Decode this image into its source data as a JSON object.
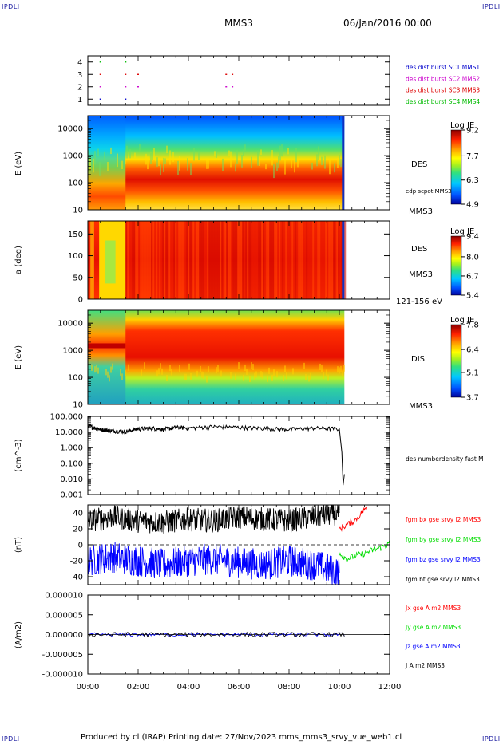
{
  "header": {
    "corner_label": "IPDLI",
    "spacecraft": "MMS3",
    "datetime": "06/Jan/2016 00:00"
  },
  "footer": {
    "text": "Produced by cl (IRAP)   Printing date: 27/Nov/2023   mms_mms3_srvy_vue_web1.cl"
  },
  "colors": {
    "mms1": "#0000cc",
    "mms2": "#cc00cc",
    "mms3": "#dd0000",
    "mms4": "#00bb00",
    "bx": "#ff0000",
    "by": "#00dd00",
    "bz": "#0000ff",
    "bt": "#000000"
  },
  "chart_data": [
    {
      "type": "scatter",
      "panel": "burst_availability",
      "yticks": [
        "1",
        "2",
        "3",
        "4"
      ],
      "legend": [
        "des dist burst SC1 MMS1",
        "des dist burst SC2 MMS2",
        "des dist burst SC3 MMS3",
        "des dist burst SC4 MMS4"
      ],
      "series": [
        {
          "name": "des dist burst SC1 MMS1",
          "y": 1,
          "x": [
            0.5,
            1.5
          ]
        },
        {
          "name": "des dist burst SC2 MMS2",
          "y": 2,
          "x": [
            0.5,
            1.5,
            2.0,
            5.5,
            5.75
          ]
        },
        {
          "name": "des dist burst SC3 MMS3",
          "y": 3,
          "x": [
            0.5,
            1.5,
            2.0,
            5.5,
            5.75
          ]
        },
        {
          "name": "des dist burst SC4 MMS4",
          "y": 4,
          "x": [
            0.5,
            1.5
          ]
        }
      ]
    },
    {
      "type": "heatmap",
      "panel": "des_energy",
      "ylabel": "E (eV)",
      "yscale": "log",
      "ylim": [
        10,
        30000
      ],
      "yticks": [
        "10",
        "100",
        "1000",
        "10000"
      ],
      "label": "DES",
      "label2": "edp scpot MMS3",
      "label3": "MMS3",
      "colorbar": {
        "title": "Log JE",
        "ticks": [
          "9.2",
          "7.7",
          "6.3",
          "4.9"
        ],
        "range": [
          4.9,
          9.2
        ]
      },
      "data_end_hour": 10.2,
      "peak_energy_eV": [
        [
          "00:00",
          60
        ],
        [
          "01:00",
          120
        ],
        [
          "02:00",
          150
        ],
        [
          "04:00",
          140
        ],
        [
          "06:00",
          150
        ],
        [
          "08:00",
          150
        ],
        [
          "10:00",
          120
        ]
      ]
    },
    {
      "type": "heatmap",
      "panel": "des_pitch_angle",
      "ylabel": "a (deg)",
      "ylim": [
        0,
        180
      ],
      "yticks": [
        "0",
        "50",
        "100",
        "150"
      ],
      "label": "DES",
      "label2": "MMS3",
      "energy_range": "121-156 eV",
      "colorbar": {
        "title": "Log JE",
        "ticks": [
          "9.4",
          "8.0",
          "6.7",
          "5.4"
        ],
        "range": [
          5.4,
          9.4
        ]
      },
      "data_end_hour": 10.2
    },
    {
      "type": "heatmap",
      "panel": "dis_energy",
      "ylabel": "E (eV)",
      "yscale": "log",
      "ylim": [
        10,
        30000
      ],
      "yticks": [
        "10",
        "100",
        "1000",
        "10000"
      ],
      "label": "DIS",
      "label2": "MMS3",
      "colorbar": {
        "title": "Log JE",
        "ticks": [
          "7.8",
          "6.4",
          "5.1",
          "3.7"
        ],
        "range": [
          3.7,
          7.8
        ]
      },
      "data_end_hour": 10.2
    },
    {
      "type": "line",
      "panel": "density",
      "ylabel": "(cm^-3)",
      "yscale": "log",
      "ylim": [
        0.001,
        100
      ],
      "yticks": [
        "0.001",
        "0.010",
        "0.100",
        "1.000",
        "10.000",
        "100.000"
      ],
      "legend": [
        "des numberdensity fast M"
      ],
      "series": [
        {
          "name": "des numberdensity fast M",
          "x": [
            0,
            0.3,
            0.6,
            1.0,
            1.5,
            2.0,
            2.5,
            3.0,
            3.5,
            4.0,
            5.0,
            6.0,
            7.0,
            8.0,
            9.0,
            10.0,
            10.1,
            10.15,
            10.2
          ],
          "y": [
            25,
            18,
            14,
            12,
            11,
            16,
            18,
            15,
            20,
            18,
            22,
            20,
            17,
            15,
            18,
            16,
            0.5,
            0.004,
            0.02
          ]
        }
      ]
    },
    {
      "type": "line",
      "panel": "magnetic_field",
      "ylabel": "(nT)",
      "ylim": [
        -50,
        50
      ],
      "yticks": [
        "-40",
        "-20",
        "0",
        "20",
        "40"
      ],
      "legend": [
        "fgm bx gse srvy l2 MMS3",
        "fgm by gse srvy l2 MMS3",
        "fgm bz gse srvy l2 MMS3",
        "fgm bt gse srvy l2 MMS3"
      ],
      "series": [
        {
          "name": "fgm bx gse srvy l2 MMS3",
          "x": [
            10.0,
            10.3,
            10.6,
            10.9,
            11.1
          ],
          "y": [
            20,
            25,
            30,
            40,
            48
          ]
        },
        {
          "name": "fgm by gse srvy l2 MMS3",
          "x": [
            10.0,
            10.3,
            10.6,
            10.9,
            11.2,
            11.5,
            11.8,
            12.0
          ],
          "y": [
            -10,
            -18,
            -14,
            -12,
            -8,
            -5,
            -2,
            2
          ]
        },
        {
          "name": "fgm bz gse srvy l2 MMS3",
          "x": [
            0,
            1,
            2,
            3,
            4,
            5,
            6,
            7,
            8,
            9,
            10
          ],
          "y": [
            -20,
            -15,
            -20,
            -25,
            -20,
            -18,
            -22,
            -25,
            -20,
            -25,
            -35
          ]
        },
        {
          "name": "fgm bt gse srvy l2 MMS3",
          "x": [
            0,
            1,
            2,
            3,
            4,
            5,
            6,
            7,
            8,
            9,
            10
          ],
          "y": [
            30,
            35,
            30,
            28,
            32,
            30,
            35,
            32,
            30,
            35,
            40
          ]
        }
      ]
    },
    {
      "type": "line",
      "panel": "current_density",
      "ylabel": "(A/m2)",
      "ylim": [
        -1e-05,
        1e-05
      ],
      "yticks": [
        "-0.000010",
        "-0.000005",
        "0.000000",
        "0.000005",
        "0.000010"
      ],
      "legend": [
        "Jx gse A m2 MMS3",
        "Jy gse A m2 MMS3",
        "Jz gse A m2 MMS3",
        "J A m2 MMS3"
      ],
      "series": [
        {
          "name": "Jx gse A m2 MMS3",
          "x": [
            0,
            10.2
          ],
          "y": [
            0,
            0
          ]
        },
        {
          "name": "Jy gse A m2 MMS3",
          "x": [
            0,
            10.2
          ],
          "y": [
            0,
            0
          ]
        },
        {
          "name": "Jz gse A m2 MMS3",
          "x": [
            0,
            10.2
          ],
          "y": [
            0,
            0
          ]
        },
        {
          "name": "J A m2 MMS3",
          "x": [
            0,
            10.2
          ],
          "y": [
            0,
            0
          ]
        }
      ]
    },
    {
      "type": "axis",
      "panel": "time_axis",
      "xlim": [
        0,
        12
      ],
      "xticks": [
        "00:00",
        "02:00",
        "04:00",
        "06:00",
        "08:00",
        "10:00",
        "12:00"
      ]
    }
  ]
}
